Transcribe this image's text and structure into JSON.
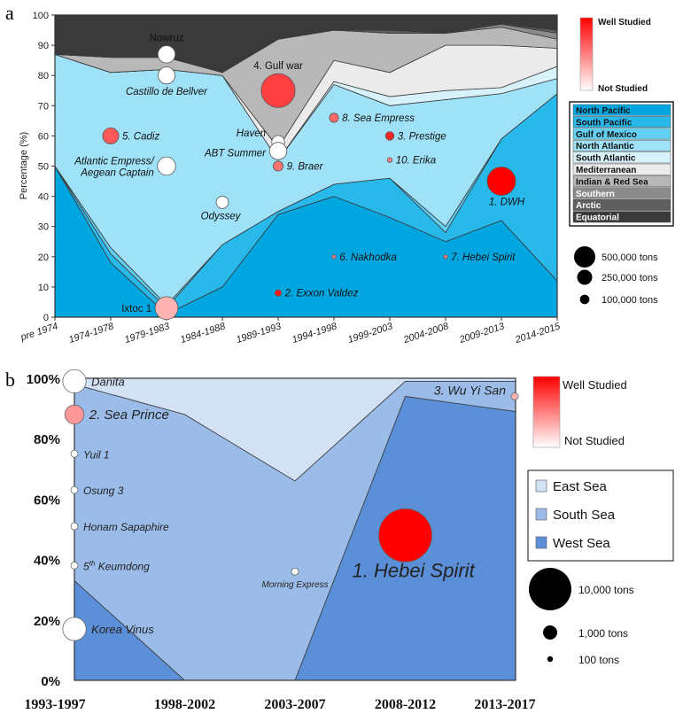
{
  "chart_data": [
    {
      "panel_label": "a",
      "type": "area",
      "stacked": true,
      "ylabel": "Percentage (%)",
      "ylim": [
        0,
        100
      ],
      "yticks": [
        "0",
        "10",
        "20",
        "30",
        "40",
        "50",
        "60",
        "70",
        "80",
        "90",
        "100"
      ],
      "categories": [
        "pre 1974",
        "1974-1978",
        "1979-1983",
        "1984-1988",
        "1989-1993",
        "1994-1998",
        "1999-2003",
        "2004-2008",
        "2009-2013",
        "2014-2015"
      ],
      "series": [
        {
          "name": "North Pacific",
          "color": "#00a6e0",
          "values": [
            50,
            18,
            1,
            10,
            34,
            40,
            33,
            25,
            32,
            12
          ]
        },
        {
          "name": "South Pacific",
          "color": "#28b9ea",
          "values": [
            0,
            3,
            2,
            14,
            1,
            4,
            13,
            3,
            27,
            62
          ]
        },
        {
          "name": "Gulf of Mexico",
          "color": "#62d0f2",
          "values": [
            0,
            2,
            1,
            0,
            0,
            0,
            0,
            2,
            0,
            0
          ]
        },
        {
          "name": "North Atlantic",
          "color": "#9fe1f6",
          "values": [
            37,
            58,
            78,
            56,
            17,
            33,
            24,
            42,
            15,
            5
          ]
        },
        {
          "name": "South Atlantic",
          "color": "#d7f2fb",
          "values": [
            0,
            0,
            0,
            0,
            0,
            1,
            3,
            3,
            2,
            4
          ]
        },
        {
          "name": "Mediterranean",
          "color": "#ebebeb",
          "values": [
            0,
            0,
            0,
            0,
            4,
            7,
            8,
            15,
            14,
            6
          ]
        },
        {
          "name": "Indian & Red Sea",
          "color": "#b8b8b8",
          "values": [
            0,
            5,
            4,
            1,
            36,
            10,
            13,
            4,
            6,
            3
          ]
        },
        {
          "name": "Southern",
          "color": "#8b8b8b",
          "values": [
            0,
            0,
            0,
            0,
            0,
            0,
            0,
            0,
            1,
            2
          ]
        },
        {
          "name": "Arctic",
          "color": "#5e5e5e",
          "values": [
            0,
            0,
            0,
            0,
            0,
            0,
            1,
            0,
            0,
            1
          ]
        },
        {
          "name": "Equatorial",
          "color": "#3a3a3a",
          "values": [
            13,
            14,
            14,
            19,
            8,
            5,
            5,
            6,
            3,
            5
          ]
        }
      ],
      "spills": [
        {
          "label": "Nowruz",
          "x": "1979-1983",
          "y": 87,
          "tons": 260000,
          "study": 0.0
        },
        {
          "label": "Castillo de Bellver",
          "x": "1979-1983",
          "y": 80,
          "tons": 250000,
          "study": 0.0
        },
        {
          "label": "Atlantic Empress/ Aegean Captain",
          "x": "1979-1983",
          "y": 50,
          "tons": 287000,
          "study": 0.0
        },
        {
          "label": "Ixtoc 1",
          "x": "1979-1983",
          "y": 3,
          "tons": 454000,
          "study": 0.3
        },
        {
          "label": "5. Cadiz",
          "x": "1974-1978",
          "y": 60,
          "tons": 223000,
          "study": 0.65
        },
        {
          "label": "Odyssey",
          "x": "1984-1988",
          "y": 38,
          "tons": 132000,
          "study": 0.0
        },
        {
          "label": "4. Gulf war",
          "x": "1989-1993",
          "y": 75,
          "tons": 1000000,
          "study": 0.75
        },
        {
          "label": "Haven",
          "x": "1989-1993",
          "y": 58,
          "tons": 144000,
          "study": 0.0
        },
        {
          "label": "ABT Summer",
          "x": "1989-1993",
          "y": 55,
          "tons": 260000,
          "study": 0.0
        },
        {
          "label": "9. Braer",
          "x": "1989-1993",
          "y": 50,
          "tons": 85000,
          "study": 0.55
        },
        {
          "label": "2. Exxon Valdez",
          "x": "1989-1993",
          "y": 8,
          "tons": 37000,
          "study": 0.9
        },
        {
          "label": "8. Sea Empress",
          "x": "1994-1998",
          "y": 66,
          "tons": 72000,
          "study": 0.6
        },
        {
          "label": "6. Nakhodka",
          "x": "1994-1998",
          "y": 20,
          "tons": 6200,
          "study": 0.5
        },
        {
          "label": "3. Prestige",
          "x": "1999-2003",
          "y": 60,
          "tons": 63000,
          "study": 0.85
        },
        {
          "label": "10. Erika",
          "x": "1999-2003",
          "y": 52,
          "tons": 20000,
          "study": 0.5
        },
        {
          "label": "7. Hebei Spirit",
          "x": "2004-2008",
          "y": 20,
          "tons": 10900,
          "study": 0.5
        },
        {
          "label": "1. DWH",
          "x": "2009-2013",
          "y": 45,
          "tons": 700000,
          "study": 1.0
        }
      ],
      "color_legend": {
        "top": "Well Studied",
        "bottom": "Not Studied"
      },
      "size_legend": [
        {
          "label": "500,000 tons",
          "tons": 500000
        },
        {
          "label": "250,000 tons",
          "tons": 250000
        },
        {
          "label": "100,000 tons",
          "tons": 100000
        }
      ]
    },
    {
      "panel_label": "b",
      "type": "area",
      "stacked": true,
      "ylim": [
        0,
        100
      ],
      "yticks": [
        "0%",
        "20%",
        "40%",
        "60%",
        "80%",
        "100%"
      ],
      "categories": [
        "1993-1997",
        "1998-2002",
        "2003-2007",
        "2008-2012",
        "2013-2017"
      ],
      "series": [
        {
          "name": "West Sea",
          "color": "#5b8fd8",
          "values": [
            33,
            0,
            0,
            94,
            89
          ]
        },
        {
          "name": "South Sea",
          "color": "#9bbce8",
          "values": [
            65,
            88,
            66,
            5,
            10
          ]
        },
        {
          "name": "East Sea",
          "color": "#d3e1f5",
          "values": [
            2,
            12,
            34,
            1,
            1
          ]
        }
      ],
      "spills": [
        {
          "label": "Danita",
          "x": "1993-1997",
          "y": 99,
          "tons": 2100,
          "study": 0.0
        },
        {
          "label": "2. Sea Prince",
          "x": "1993-1997",
          "y": 88,
          "tons": 1400,
          "study": 0.4
        },
        {
          "label": "Yuil 1",
          "x": "1993-1997",
          "y": 75,
          "tons": 150,
          "study": 0.0
        },
        {
          "label": "Osung 3",
          "x": "1993-1997",
          "y": 63,
          "tons": 120,
          "study": 0.0
        },
        {
          "label": "Honam Sapaphire",
          "x": "1993-1997",
          "y": 51,
          "tons": 110,
          "study": 0.0
        },
        {
          "label": "5th Keumdong",
          "x": "1993-1997",
          "y": 38,
          "tons": 110,
          "study": 0.0
        },
        {
          "label": "Korea Vinus",
          "x": "1993-1997",
          "y": 17,
          "tons": 2100,
          "study": 0.0
        },
        {
          "label": "Morning Express",
          "x": "2003-2007",
          "y": 36,
          "tons": 120,
          "study": 0.0
        },
        {
          "label": "1. Hebei Spirit",
          "x": "2008-2012",
          "y": 48,
          "tons": 10900,
          "study": 1.0
        },
        {
          "label": "3. Wu Yi San",
          "x": "2013-2017",
          "y": 94,
          "tons": 100,
          "study": 0.3
        }
      ],
      "color_legend": {
        "top": "Well Studied",
        "bottom": "Not Studied"
      },
      "size_legend": [
        {
          "label": "10,000 tons",
          "tons": 10000
        },
        {
          "label": "1,000 tons",
          "tons": 1000
        },
        {
          "label": "100 tons",
          "tons": 100
        }
      ]
    }
  ]
}
